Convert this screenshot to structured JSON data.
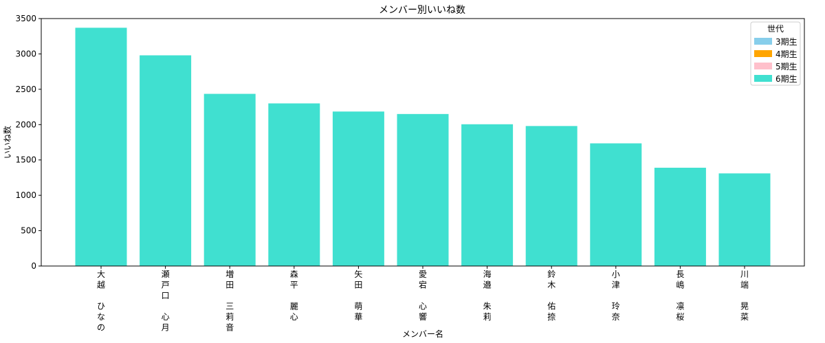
{
  "chart_data": {
    "type": "bar",
    "title": "メンバー別いいね数",
    "xlabel": "メンバー名",
    "ylabel": "いいね数",
    "ylim": [
      0,
      3500
    ],
    "yticks": [
      0,
      500,
      1000,
      1500,
      2000,
      2500,
      3000,
      3500
    ],
    "grid": false,
    "legend_position": "top-right",
    "legend_title": "世代",
    "legend": [
      {
        "label": "3期生",
        "color": "#87CEEB"
      },
      {
        "label": "4期生",
        "color": "#FFA500"
      },
      {
        "label": "5期生",
        "color": "#FFC0CB"
      },
      {
        "label": "6期生",
        "color": "#40E0D0"
      }
    ],
    "categories": [
      "大越\nひなの",
      "瀬戸口\n心月",
      "増田\n三莉音",
      "森平\n麗心",
      "矢田\n萌華",
      "愛宕\n心響",
      "海邉\n朱莉",
      "鈴木\n佑捺",
      "小津\n玲奈",
      "長嶋\n凛桜",
      "川端\n晃菜"
    ],
    "values": [
      3370,
      2980,
      2435,
      2300,
      2185,
      2150,
      2005,
      1980,
      1735,
      1390,
      1310
    ],
    "generation": [
      "6期生",
      "6期生",
      "6期生",
      "6期生",
      "6期生",
      "6期生",
      "6期生",
      "6期生",
      "6期生",
      "6期生",
      "6期生"
    ],
    "bar_color": "#40E0D0"
  }
}
